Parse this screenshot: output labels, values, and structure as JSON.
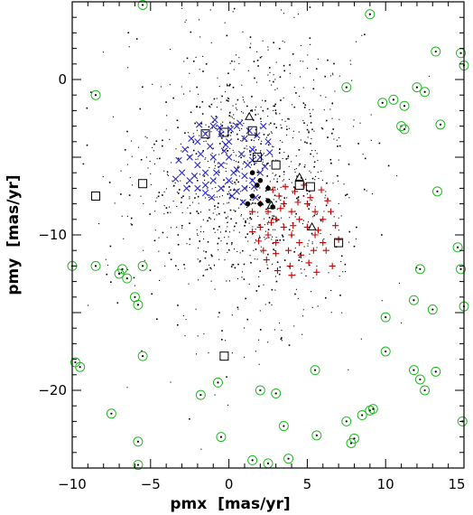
{
  "chart_data": {
    "type": "scatter",
    "title": "",
    "xlabel": "pmx  [mas/yr]",
    "ylabel": "pmy  [mas/yr]",
    "xlim": [
      -10,
      15
    ],
    "ylim": [
      -25,
      5
    ],
    "x_ticks": [
      -10,
      -5,
      0,
      5,
      10,
      15
    ],
    "y_ticks": [
      0,
      -10,
      -20
    ],
    "x_tick_labels": [
      "−10",
      "−5",
      "0",
      "5",
      "10",
      "15"
    ],
    "y_tick_labels": [
      "0",
      "−10",
      "−20"
    ],
    "grid": false,
    "legend": "none",
    "series": [
      {
        "marker": "x",
        "color": "#2b2bd0",
        "points": [
          [
            -2.0,
            -4.0
          ],
          [
            -1.5,
            -3.5
          ],
          [
            -1.0,
            -3.0
          ],
          [
            -0.5,
            -3.5
          ],
          [
            0.0,
            -4.0
          ],
          [
            0.5,
            -3.0
          ],
          [
            1.0,
            -3.8
          ],
          [
            1.5,
            -4.5
          ],
          [
            2.0,
            -5.0
          ],
          [
            2.5,
            -4.0
          ],
          [
            -2.5,
            -5.0
          ],
          [
            -2.0,
            -5.5
          ],
          [
            -1.5,
            -6.0
          ],
          [
            -1.0,
            -5.0
          ],
          [
            -0.5,
            -5.5
          ],
          [
            0.0,
            -5.0
          ],
          [
            0.5,
            -5.8
          ],
          [
            1.0,
            -6.2
          ],
          [
            1.5,
            -5.2
          ],
          [
            2.0,
            -6.0
          ],
          [
            -3.0,
            -6.0
          ],
          [
            -2.5,
            -6.5
          ],
          [
            -2.0,
            -7.0
          ],
          [
            -1.5,
            -6.8
          ],
          [
            -1.0,
            -6.5
          ],
          [
            -0.5,
            -7.0
          ],
          [
            0.0,
            -6.5
          ],
          [
            0.5,
            -7.2
          ],
          [
            1.0,
            -7.0
          ],
          [
            1.5,
            -6.5
          ],
          [
            -1.2,
            -4.3
          ],
          [
            -0.3,
            -4.6
          ],
          [
            0.8,
            -4.8
          ],
          [
            1.8,
            -3.6
          ],
          [
            -2.2,
            -6.2
          ],
          [
            -1.8,
            -4.8
          ],
          [
            0.3,
            -6.0
          ],
          [
            -0.8,
            -6.0
          ],
          [
            1.2,
            -5.5
          ],
          [
            2.3,
            -5.6
          ],
          [
            -3.2,
            -5.2
          ],
          [
            -2.8,
            -4.5
          ],
          [
            -1.5,
            -7.3
          ],
          [
            0.2,
            -7.5
          ],
          [
            1.7,
            -7.6
          ],
          [
            2.6,
            -4.7
          ],
          [
            -0.6,
            -3.1
          ],
          [
            0.7,
            -2.8
          ],
          [
            1.3,
            -3.3
          ],
          [
            -2.4,
            -3.8
          ],
          [
            -1.9,
            -2.9
          ],
          [
            -0.9,
            -2.6
          ],
          [
            0.1,
            -3.2
          ],
          [
            2.2,
            -3.0
          ],
          [
            -2.7,
            -7.0
          ],
          [
            -1.1,
            -7.6
          ],
          [
            0.9,
            -7.9
          ],
          [
            -0.2,
            -4.2
          ],
          [
            1.6,
            -6.9
          ],
          [
            -3.4,
            -6.4
          ]
        ]
      },
      {
        "marker": "+",
        "color": "#cc0000",
        "points": [
          [
            2.0,
            -8.0
          ],
          [
            2.5,
            -8.5
          ],
          [
            3.0,
            -9.0
          ],
          [
            3.5,
            -8.0
          ],
          [
            4.0,
            -8.5
          ],
          [
            4.5,
            -9.0
          ],
          [
            5.0,
            -8.0
          ],
          [
            5.5,
            -8.5
          ],
          [
            6.0,
            -9.0
          ],
          [
            6.5,
            -8.5
          ],
          [
            2.0,
            -9.5
          ],
          [
            2.5,
            -10.0
          ],
          [
            3.0,
            -10.5
          ],
          [
            3.5,
            -9.5
          ],
          [
            4.0,
            -10.0
          ],
          [
            4.5,
            -10.5
          ],
          [
            5.0,
            -9.5
          ],
          [
            5.5,
            -10.0
          ],
          [
            6.0,
            -10.5
          ],
          [
            1.5,
            -8.5
          ],
          [
            1.5,
            -9.8
          ],
          [
            2.2,
            -11.0
          ],
          [
            3.0,
            -11.2
          ],
          [
            3.8,
            -11.0
          ],
          [
            4.6,
            -11.3
          ],
          [
            5.4,
            -11.0
          ],
          [
            6.2,
            -11.0
          ],
          [
            3.2,
            -7.5
          ],
          [
            4.2,
            -7.2
          ],
          [
            5.2,
            -7.6
          ],
          [
            6.3,
            -7.8
          ],
          [
            4.8,
            -6.8
          ],
          [
            3.6,
            -6.9
          ],
          [
            2.8,
            -7.1
          ],
          [
            1.9,
            -10.4
          ],
          [
            2.7,
            -9.2
          ],
          [
            3.3,
            -8.3
          ],
          [
            4.1,
            -9.4
          ],
          [
            5.7,
            -9.7
          ],
          [
            6.8,
            -9.4
          ],
          [
            7.0,
            -10.3
          ],
          [
            5.1,
            -11.8
          ],
          [
            3.9,
            -12.0
          ],
          [
            2.4,
            -11.6
          ],
          [
            6.6,
            -12.0
          ],
          [
            4.4,
            -7.9
          ],
          [
            5.9,
            -7.1
          ],
          [
            3.1,
            -12.3
          ],
          [
            5.6,
            -12.4
          ],
          [
            4.0,
            -12.6
          ]
        ]
      },
      {
        "marker": "filled-circle",
        "color": "#000000",
        "points": [
          [
            1.5,
            -6.0
          ],
          [
            2.0,
            -6.5
          ],
          [
            2.5,
            -7.0
          ],
          [
            1.5,
            -7.5
          ],
          [
            2.0,
            -8.0
          ],
          [
            2.5,
            -7.8
          ],
          [
            1.8,
            -6.8
          ],
          [
            2.8,
            -8.2
          ],
          [
            1.2,
            -8.0
          ]
        ]
      },
      {
        "marker": "open-square",
        "color": "#000000",
        "points": [
          [
            -8.5,
            -7.5
          ],
          [
            -5.5,
            -6.7
          ],
          [
            -1.5,
            -3.5
          ],
          [
            -0.3,
            -3.4
          ],
          [
            1.5,
            -3.3
          ],
          [
            1.8,
            -5.0
          ],
          [
            3.0,
            -5.5
          ],
          [
            4.5,
            -6.8
          ],
          [
            5.2,
            -6.9
          ],
          [
            7.0,
            -10.5
          ],
          [
            -0.3,
            -17.8
          ]
        ]
      },
      {
        "marker": "open-triangle",
        "color": "#000000",
        "points": [
          [
            1.3,
            -2.4
          ],
          [
            4.5,
            -6.3
          ],
          [
            5.3,
            -9.5
          ],
          [
            2.7,
            -8.1
          ]
        ]
      },
      {
        "marker": "circled-dot",
        "color": "#22bb22",
        "points": [
          [
            -5.5,
            4.8
          ],
          [
            -5.5,
            -12.0
          ],
          [
            -6.0,
            -14.0
          ],
          [
            -5.8,
            -14.5
          ],
          [
            -7.0,
            -12.5
          ],
          [
            -6.8,
            -12.2
          ],
          [
            -6.5,
            -12.8
          ],
          [
            -8.5,
            -1.0
          ],
          [
            -8.5,
            -12.0
          ],
          [
            -10.0,
            -12.0
          ],
          [
            -9.5,
            -18.5
          ],
          [
            -9.8,
            -18.2
          ],
          [
            -5.5,
            -17.8
          ],
          [
            -7.5,
            -21.5
          ],
          [
            -5.8,
            -23.3
          ],
          [
            -5.8,
            -24.8
          ],
          [
            -1.8,
            -20.3
          ],
          [
            -0.7,
            -19.5
          ],
          [
            -0.5,
            -23.0
          ],
          [
            1.5,
            -24.5
          ],
          [
            2.0,
            -20.0
          ],
          [
            2.5,
            -24.7
          ],
          [
            3.0,
            -20.2
          ],
          [
            3.5,
            -22.3
          ],
          [
            3.8,
            -24.4
          ],
          [
            5.5,
            -18.7
          ],
          [
            5.6,
            -22.9
          ],
          [
            7.5,
            -22.0
          ],
          [
            7.8,
            -23.4
          ],
          [
            8.0,
            -23.1
          ],
          [
            8.5,
            -21.6
          ],
          [
            9.0,
            -21.3
          ],
          [
            9.2,
            -21.2
          ],
          [
            10.0,
            -17.5
          ],
          [
            9.0,
            4.2
          ],
          [
            7.5,
            -0.5
          ],
          [
            9.8,
            -1.5
          ],
          [
            10.5,
            -1.3
          ],
          [
            11.0,
            -3.0
          ],
          [
            11.2,
            -3.2
          ],
          [
            12.0,
            -0.5
          ],
          [
            12.5,
            -0.8
          ],
          [
            13.2,
            1.8
          ],
          [
            13.5,
            -2.9
          ],
          [
            13.3,
            -7.2
          ],
          [
            14.8,
            1.7
          ],
          [
            15.0,
            0.9
          ],
          [
            14.6,
            -10.8
          ],
          [
            14.8,
            -12.2
          ],
          [
            12.2,
            -12.2
          ],
          [
            11.8,
            -14.2
          ],
          [
            10.0,
            -15.3
          ],
          [
            13.0,
            -14.8
          ],
          [
            11.8,
            -18.7
          ],
          [
            12.2,
            -19.3
          ],
          [
            12.5,
            -20.0
          ],
          [
            13.2,
            -18.8
          ],
          [
            14.9,
            -22.0
          ],
          [
            15.0,
            -14.6
          ],
          [
            11.2,
            -1.7
          ]
        ]
      }
    ],
    "field_stars_note_free": true
  }
}
